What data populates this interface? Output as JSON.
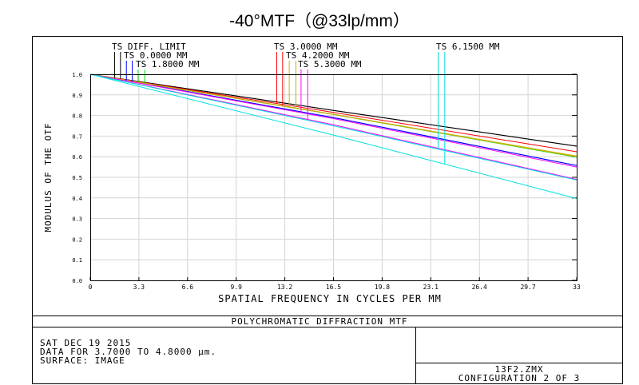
{
  "title": "-40°MTF（@33lp/mm）",
  "chart_data": {
    "type": "line",
    "title": "-40°MTF（@33lp/mm）",
    "subtitle": "POLYCHROMATIC DIFFRACTION MTF",
    "xlabel": "SPATIAL FREQUENCY IN CYCLES PER MM",
    "ylabel": "MODULUS OF THE OTF",
    "xlim": [
      0,
      33
    ],
    "ylim": [
      0,
      1
    ],
    "grid": true,
    "x_ticks": [
      "0",
      "3.3",
      "6.6",
      "9.9",
      "13.2",
      "16.5",
      "19.8",
      "23.1",
      "26.4",
      "29.7",
      "33"
    ],
    "y_ticks": [
      "0.0",
      "0.1",
      "0.2",
      "0.3",
      "0.4",
      "0.5",
      "0.6",
      "0.7",
      "0.8",
      "0.9",
      "1.0"
    ],
    "legend": [
      {
        "label": "TS DIFF. LIMIT",
        "color": "#000000",
        "marks": [
          1.65,
          2.05
        ]
      },
      {
        "label": "TS 0.0000 MM",
        "color": "#0000ff",
        "marks": [
          2.45,
          2.85
        ]
      },
      {
        "label": "TS 1.8000 MM",
        "color": "#00dd00",
        "marks": [
          3.25,
          3.7
        ]
      },
      {
        "label": "TS 3.0000 MM",
        "color": "#ff0000",
        "marks": [
          12.65,
          13.05
        ]
      },
      {
        "label": "TS 4.2000 MM",
        "color": "#c8b400",
        "marks": [
          13.5,
          13.95
        ]
      },
      {
        "label": "TS 5.3000 MM",
        "color": "#ff00ff",
        "marks": [
          14.3,
          14.75
        ]
      },
      {
        "label": "TS 6.1500 MM",
        "color": "#00e0e0",
        "marks": [
          23.6,
          24.05
        ]
      }
    ],
    "series": [
      {
        "name": "DIFF. LIMIT T",
        "color": "#000000",
        "x": [
          0,
          16.5,
          33
        ],
        "y": [
          1.0,
          0.825,
          0.651
        ]
      },
      {
        "name": "DIFF. LIMIT S",
        "color": "#000000",
        "x": [
          0,
          16.5,
          33
        ],
        "y": [
          1.0,
          0.825,
          0.651
        ]
      },
      {
        "name": "0.0000 MM T",
        "color": "#0000ff",
        "x": [
          0,
          16.5,
          33
        ],
        "y": [
          1.0,
          0.79,
          0.557
        ]
      },
      {
        "name": "0.0000 MM S",
        "color": "#0000ff",
        "x": [
          0,
          16.5,
          33
        ],
        "y": [
          1.0,
          0.79,
          0.557
        ]
      },
      {
        "name": "1.8000 MM T",
        "color": "#00dd00",
        "x": [
          0,
          16.5,
          33
        ],
        "y": [
          1.0,
          0.805,
          0.598
        ]
      },
      {
        "name": "1.8000 MM S",
        "color": "#00dd00",
        "x": [
          0,
          16.5,
          33
        ],
        "y": [
          1.0,
          0.805,
          0.6
        ]
      },
      {
        "name": "3.0000 MM T",
        "color": "#ff0000",
        "x": [
          0,
          16.5,
          33
        ],
        "y": [
          1.0,
          0.815,
          0.624
        ]
      },
      {
        "name": "3.0000 MM S",
        "color": "#ff0000",
        "x": [
          0,
          16.5,
          33
        ],
        "y": [
          1.0,
          0.806,
          0.602
        ]
      },
      {
        "name": "4.2000 MM T",
        "color": "#c8b400",
        "x": [
          0,
          16.5,
          33
        ],
        "y": [
          1.0,
          0.806,
          0.603
        ]
      },
      {
        "name": "4.2000 MM S",
        "color": "#c8b400",
        "x": [
          0,
          16.5,
          33
        ],
        "y": [
          1.0,
          0.806,
          0.6
        ]
      },
      {
        "name": "5.3000 MM T",
        "color": "#ff00ff",
        "x": [
          0,
          16.5,
          33
        ],
        "y": [
          1.0,
          0.785,
          0.55
        ]
      },
      {
        "name": "5.3000 MM S",
        "color": "#ff00ff",
        "x": [
          0,
          16.5,
          33
        ],
        "y": [
          1.0,
          0.755,
          0.49
        ]
      },
      {
        "name": "6.1500 MM T",
        "color": "#00e0e0",
        "x": [
          0,
          16.5,
          33
        ],
        "y": [
          1.0,
          0.75,
          0.487
        ]
      },
      {
        "name": "6.1500 MM S",
        "color": "#00e0e0",
        "x": [
          0,
          16.5,
          33
        ],
        "y": [
          1.0,
          0.705,
          0.397
        ]
      }
    ]
  },
  "footer": {
    "date": "SAT DEC 19 2015",
    "data_range": "DATA FOR 3.7000 TO 4.8000 µm.",
    "surface": "SURFACE: IMAGE",
    "file": "13F2.ZMX",
    "configuration": "CONFIGURATION 2 OF 3"
  }
}
